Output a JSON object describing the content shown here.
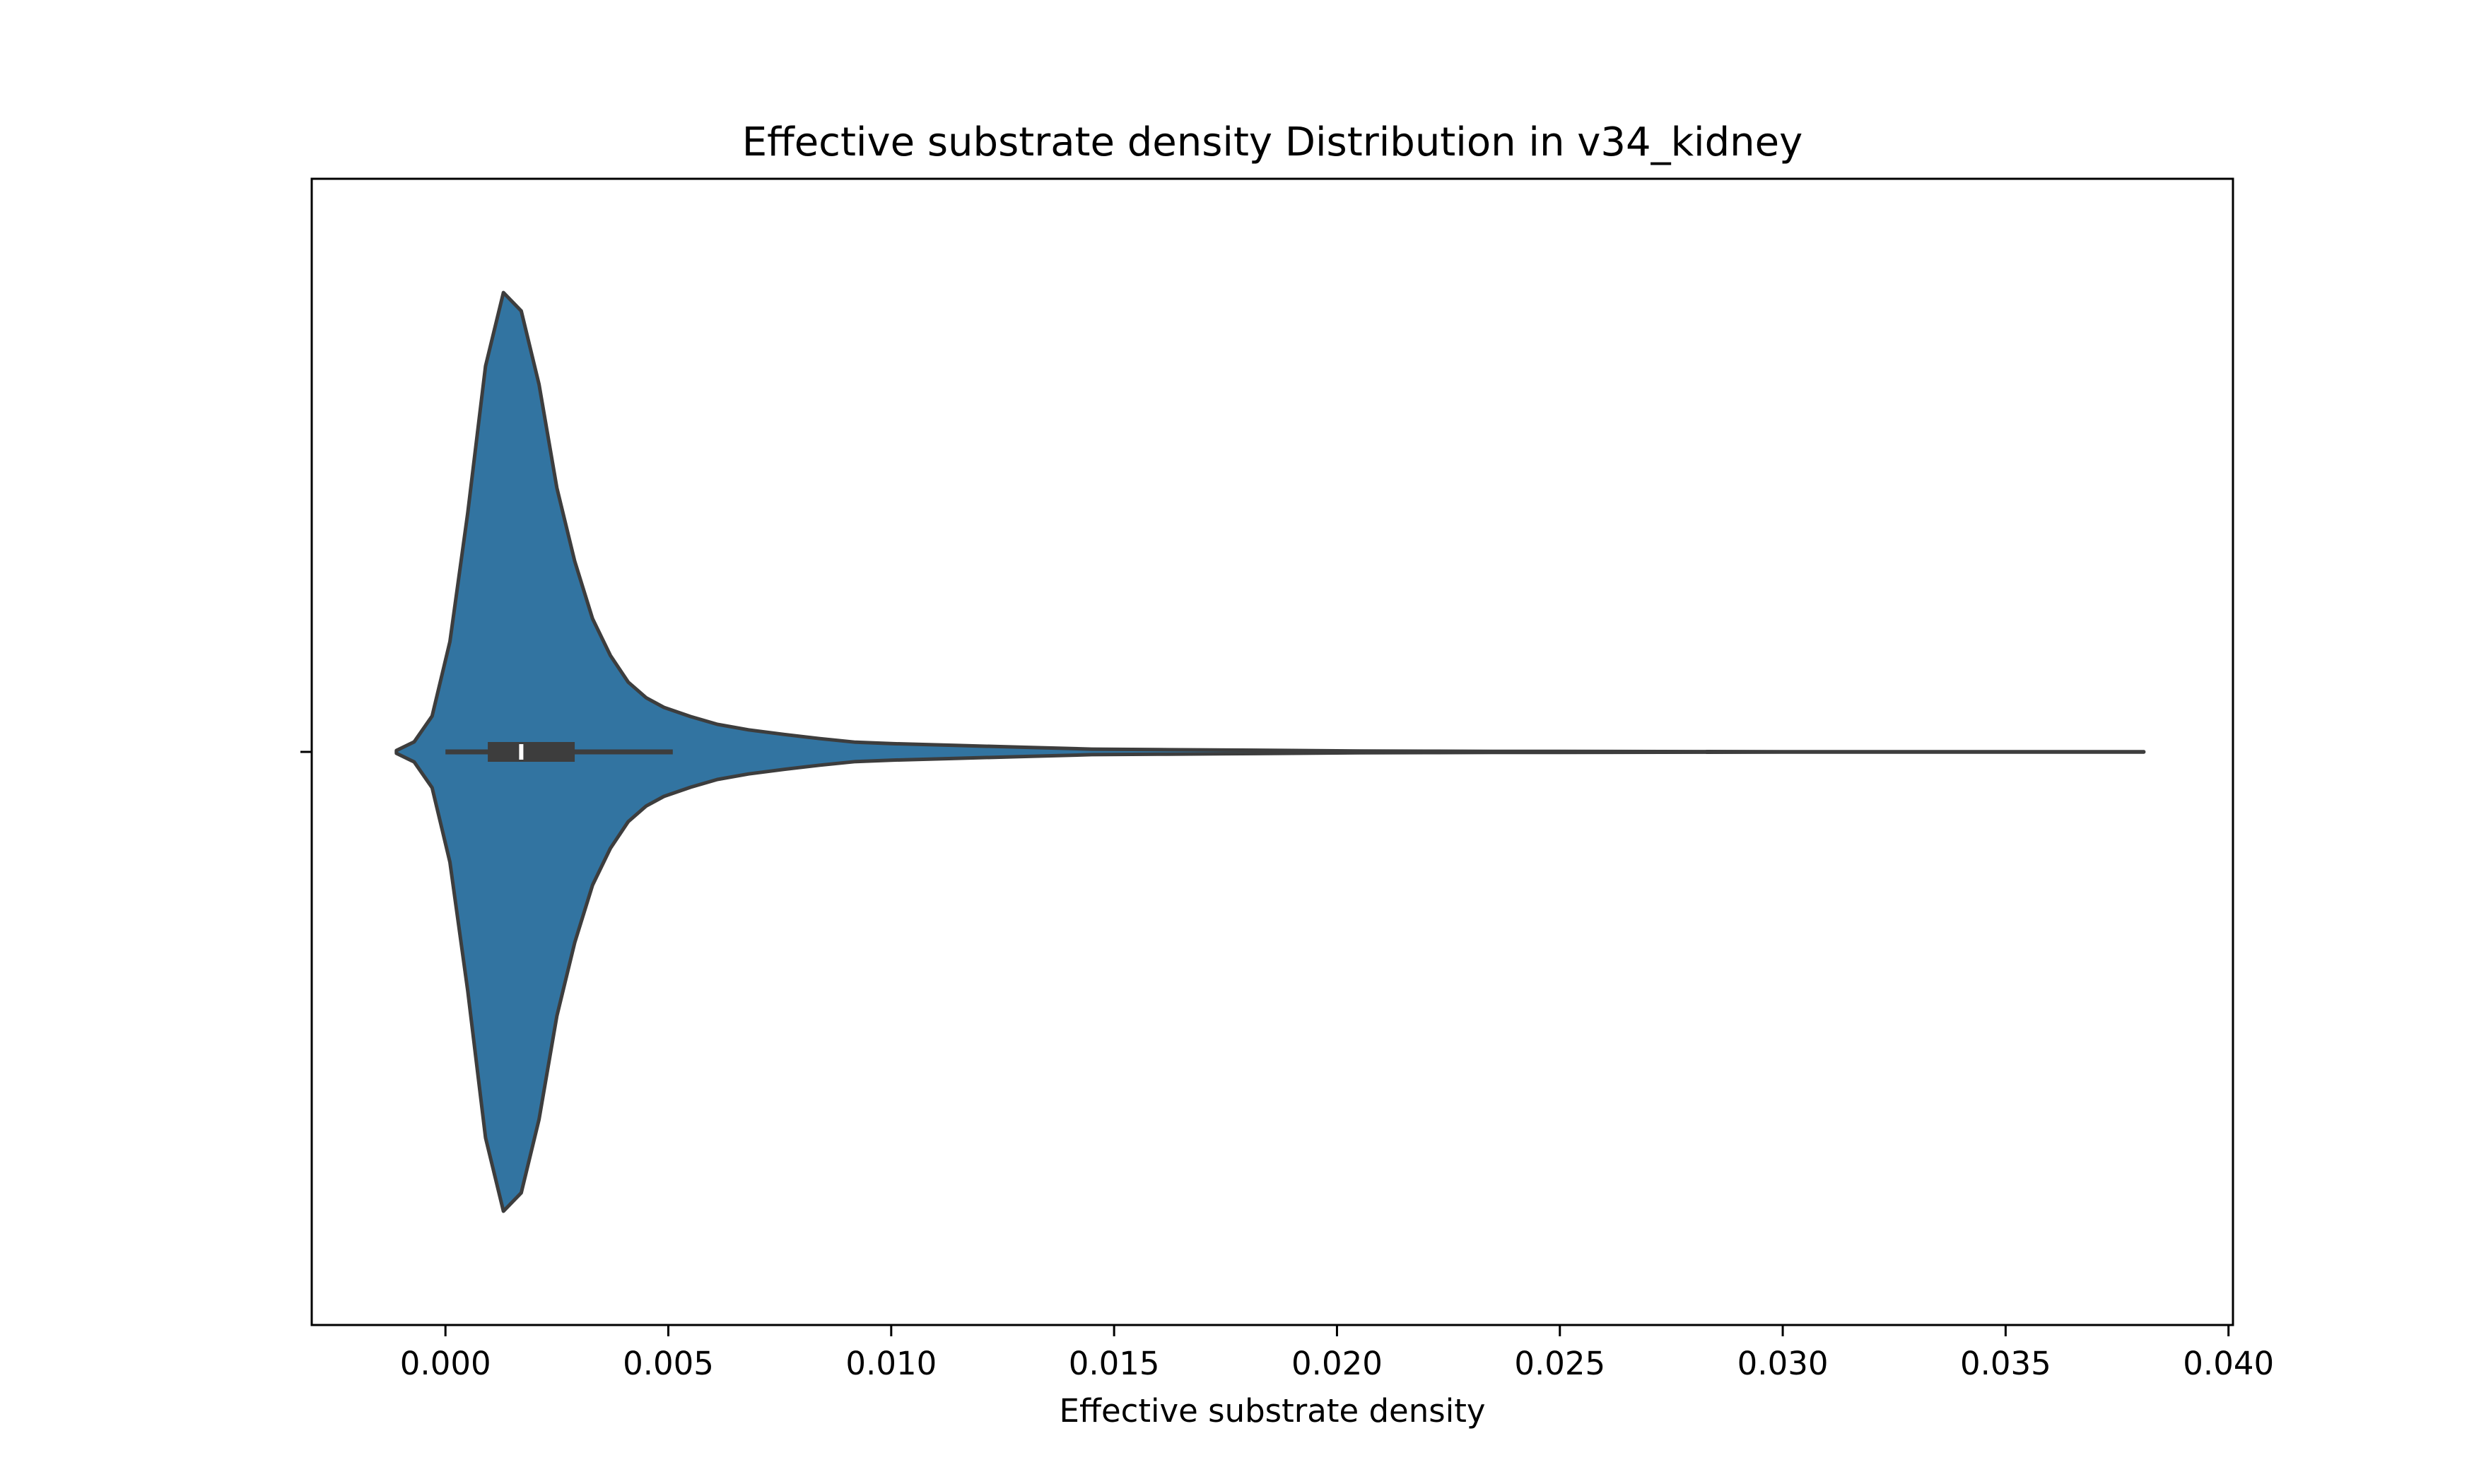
{
  "chart_data": {
    "type": "violin",
    "orientation": "horizontal",
    "title": "Effective substrate density Distribution in v34_kidney",
    "xlabel": "Effective substrate density",
    "ylabel": "",
    "xlim": [
      -0.003,
      0.0401
    ],
    "xticks": [
      0.0,
      0.005,
      0.01,
      0.015,
      0.02,
      0.025,
      0.03,
      0.035,
      0.04
    ],
    "xtick_labels": [
      "0.000",
      "0.005",
      "0.010",
      "0.015",
      "0.020",
      "0.025",
      "0.030",
      "0.035",
      "0.040"
    ],
    "grid": false,
    "legend": "none",
    "colors": {
      "fill": "#3274a1",
      "edge": "#3d3d3d",
      "box": "#3d3d3d",
      "median": "#ffffff"
    },
    "density_profile": {
      "x": [
        -0.0011,
        -0.0007,
        -0.0003,
        0.0001,
        0.0005,
        0.0009,
        0.0013,
        0.0017,
        0.0021,
        0.0025,
        0.0029,
        0.0033,
        0.0037,
        0.0041,
        0.0045,
        0.0049,
        0.0055,
        0.0061,
        0.0068,
        0.0076,
        0.0084,
        0.0092,
        0.01,
        0.0115,
        0.013,
        0.0145,
        0.016,
        0.0175,
        0.019,
        0.0205,
        0.022,
        0.0235,
        0.025,
        0.03,
        0.035,
        0.0381
      ],
      "half_width": [
        0.003,
        0.022,
        0.078,
        0.24,
        0.52,
        0.84,
        1.0,
        0.96,
        0.8,
        0.575,
        0.415,
        0.29,
        0.21,
        0.152,
        0.118,
        0.097,
        0.077,
        0.06,
        0.048,
        0.038,
        0.029,
        0.021,
        0.018,
        0.014,
        0.01,
        0.006,
        0.005,
        0.004,
        0.003,
        0.002,
        0.0015,
        0.001,
        0.001,
        0.0005,
        0.0005,
        0.0003
      ]
    },
    "box": {
      "whisker_low": 0.0,
      "q1": 0.00095,
      "median": 0.0017,
      "q3": 0.0029,
      "whisker_high": 0.0051
    }
  }
}
